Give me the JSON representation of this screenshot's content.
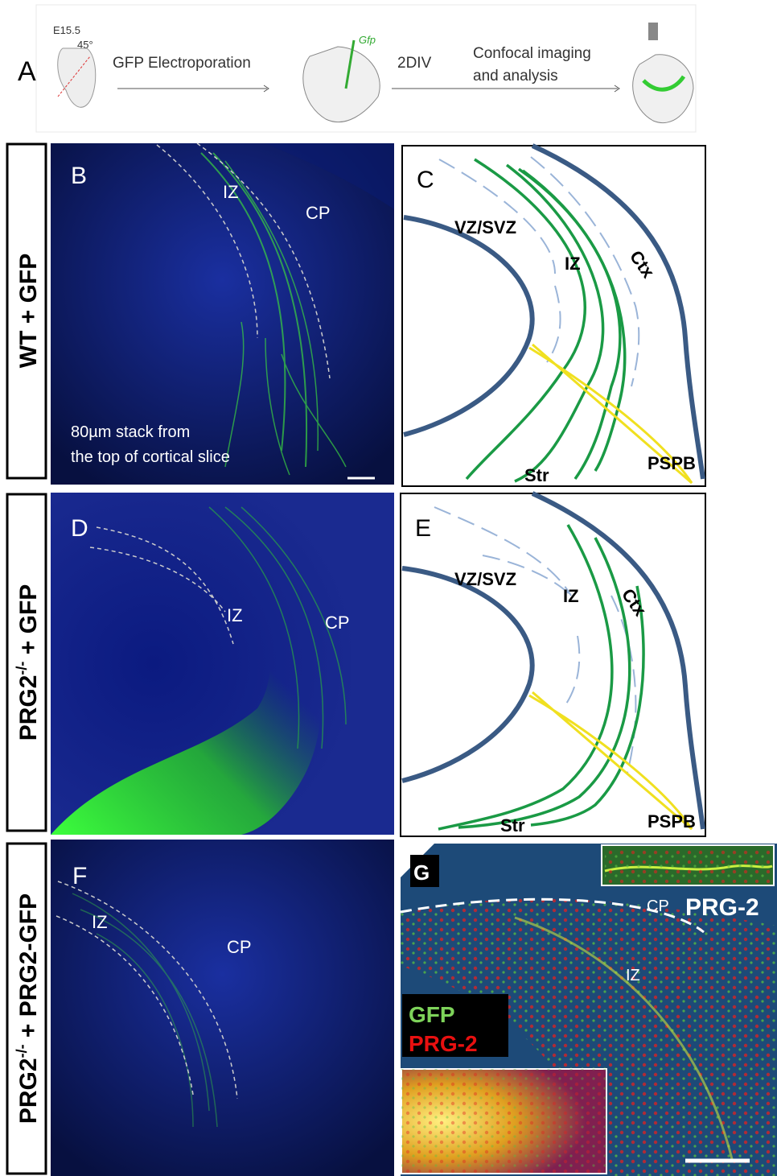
{
  "panel_a": {
    "label": "A",
    "age": "E15.5",
    "angle": "45°",
    "step1": "GFP Electroporation",
    "gene": "Gfp",
    "step2": "2DIV",
    "step3": [
      "Confocal imaging",
      "and analysis"
    ]
  },
  "row_labels": [
    {
      "parts": [
        "WT + GFP"
      ]
    },
    {
      "parts": [
        "PRG2",
        "-/-",
        " + GFP"
      ]
    },
    {
      "parts": [
        "PRG2",
        "-/-",
        " + PRG2-GFP"
      ]
    }
  ],
  "panels": {
    "B": {
      "label": "B",
      "regions": [
        "IZ",
        "CP"
      ],
      "note": [
        "80µm stack from",
        "the top of cortical slice"
      ]
    },
    "C": {
      "label": "C",
      "regions": [
        "VZ/SVZ",
        "IZ",
        "Ctx",
        "Str",
        "PSPB"
      ]
    },
    "D": {
      "label": "D",
      "regions": [
        "IZ",
        "CP"
      ]
    },
    "E": {
      "label": "E",
      "regions": [
        "VZ/SVZ",
        "IZ",
        "Ctx",
        "Str",
        "PSPB"
      ]
    },
    "F": {
      "label": "F",
      "regions": [
        "IZ",
        "CP"
      ]
    },
    "G": {
      "label": "G",
      "regions": [
        "CP",
        "PRG-2",
        "IZ"
      ],
      "legend": [
        "GFP",
        "PRG-2"
      ]
    }
  }
}
